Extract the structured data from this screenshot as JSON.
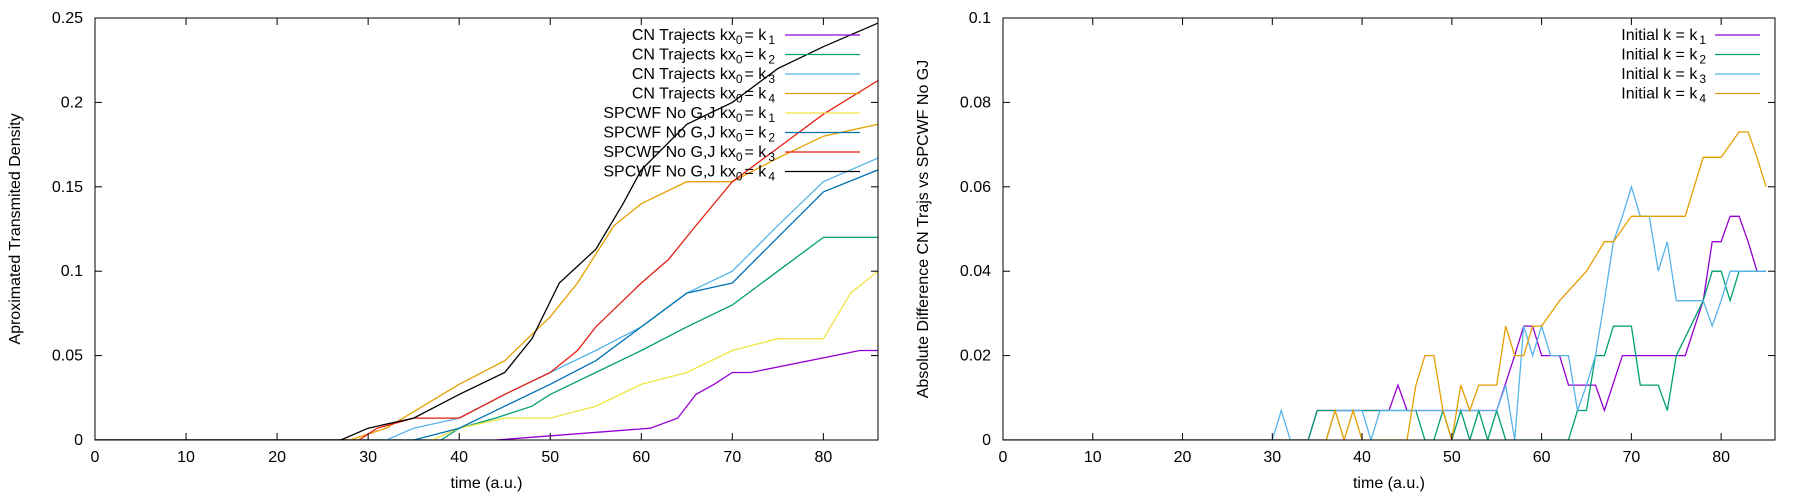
{
  "chart_data": [
    {
      "type": "line",
      "xlabel": "time (a.u.)",
      "ylabel": "Aproximated Transmited Density",
      "xlim": [
        0,
        86
      ],
      "ylim": [
        0,
        0.25
      ],
      "xticks": [
        0,
        10,
        20,
        30,
        40,
        50,
        60,
        70,
        80
      ],
      "xtick_labels": [
        "0",
        "10",
        "20",
        "30",
        "40",
        "50",
        "60",
        "70",
        "80"
      ],
      "yticks": [
        0,
        0.05,
        0.1,
        0.15,
        0.2,
        0.25
      ],
      "ytick_labels": [
        "0",
        "0.05",
        "0.1",
        "0.15",
        "0.2",
        "0.25"
      ],
      "grid": false,
      "legend_position": "top-right",
      "series": [
        {
          "label_prefix": "CN Trajects kx",
          "label_sub0": "0",
          "label_mid": "= k",
          "label_sub1": "1",
          "color": "#9400d3",
          "x": [
            0,
            44,
            61,
            64,
            66,
            68,
            70,
            72,
            84,
            86
          ],
          "y": [
            0,
            0,
            0.007,
            0.013,
            0.027,
            0.033,
            0.04,
            0.04,
            0.053,
            0.053
          ]
        },
        {
          "label_prefix": "CN Trajects kx",
          "label_sub0": "0",
          "label_mid": "= k",
          "label_sub1": "2",
          "color": "#009e73",
          "x": [
            0,
            38,
            40,
            44,
            48,
            50,
            55,
            60,
            65,
            70,
            75,
            80,
            86
          ],
          "y": [
            0,
            0,
            0.007,
            0.013,
            0.02,
            0.027,
            0.04,
            0.053,
            0.067,
            0.08,
            0.1,
            0.12,
            0.12
          ]
        },
        {
          "label_prefix": "CN Trajects kx",
          "label_sub0": "0",
          "label_mid": "= k",
          "label_sub1": "3",
          "color": "#56b4e9",
          "x": [
            0,
            32,
            35,
            40,
            45,
            50,
            55,
            60,
            65,
            70,
            75,
            80,
            86
          ],
          "y": [
            0,
            0,
            0.007,
            0.013,
            0.027,
            0.04,
            0.053,
            0.067,
            0.087,
            0.1,
            0.127,
            0.153,
            0.167
          ]
        },
        {
          "label_prefix": "CN Trajects kx",
          "label_sub0": "0",
          "label_mid": "= k",
          "label_sub1": "4",
          "color": "#e69f00",
          "x": [
            0,
            28,
            32,
            36,
            40,
            45,
            50,
            53,
            57,
            60,
            65,
            70,
            75,
            80,
            86
          ],
          "y": [
            0,
            0,
            0.007,
            0.02,
            0.033,
            0.047,
            0.073,
            0.093,
            0.127,
            0.14,
            0.153,
            0.153,
            0.167,
            0.18,
            0.187
          ]
        },
        {
          "label_prefix": "SPCWF No G,J kx",
          "label_sub0": "0",
          "label_mid": "= k",
          "label_sub1": "1",
          "color": "#f0e442",
          "x": [
            0,
            37,
            40,
            45,
            50,
            55,
            60,
            65,
            70,
            75,
            80,
            83,
            86
          ],
          "y": [
            0,
            0,
            0.007,
            0.013,
            0.013,
            0.02,
            0.033,
            0.04,
            0.053,
            0.06,
            0.06,
            0.087,
            0.1
          ]
        },
        {
          "label_prefix": "SPCWF No G,J kx",
          "label_sub0": "0",
          "label_mid": "= k",
          "label_sub1": "2",
          "color": "#0072b2",
          "x": [
            0,
            35,
            40,
            45,
            50,
            55,
            60,
            65,
            70,
            75,
            80,
            86
          ],
          "y": [
            0,
            0,
            0.007,
            0.02,
            0.033,
            0.047,
            0.067,
            0.087,
            0.093,
            0.12,
            0.147,
            0.16
          ]
        },
        {
          "label_prefix": "SPCWF No G,J kx",
          "label_sub0": "0",
          "label_mid": "= k",
          "label_sub1": "3",
          "color": "#e51e10",
          "x": [
            0,
            29,
            31,
            35,
            40,
            45,
            50,
            53,
            55,
            60,
            63,
            66,
            70,
            75,
            80,
            86
          ],
          "y": [
            0,
            0,
            0.007,
            0.013,
            0.013,
            0.027,
            0.04,
            0.053,
            0.067,
            0.093,
            0.107,
            0.127,
            0.153,
            0.173,
            0.193,
            0.213
          ]
        },
        {
          "label_prefix": "SPCWF No G,J kx",
          "label_sub0": "0",
          "label_mid": "= k",
          "label_sub1": "4",
          "color": "#000000",
          "x": [
            0,
            27,
            30,
            35,
            40,
            45,
            48,
            51,
            55,
            58,
            60,
            65,
            70,
            75,
            80,
            86
          ],
          "y": [
            0,
            0,
            0.007,
            0.013,
            0.027,
            0.04,
            0.06,
            0.093,
            0.113,
            0.14,
            0.16,
            0.187,
            0.2,
            0.22,
            0.233,
            0.247
          ]
        }
      ]
    },
    {
      "type": "line",
      "xlabel": "time (a.u.)",
      "ylabel": "Absolute Difference CN Trajs vs SPCWF No GJ",
      "xlim": [
        0,
        86
      ],
      "ylim": [
        0,
        0.1
      ],
      "xticks": [
        0,
        10,
        20,
        30,
        40,
        50,
        60,
        70,
        80
      ],
      "xtick_labels": [
        "0",
        "10",
        "20",
        "30",
        "40",
        "50",
        "60",
        "70",
        "80"
      ],
      "yticks": [
        0,
        0.02,
        0.04,
        0.06,
        0.08,
        0.1
      ],
      "ytick_labels": [
        "0",
        "0.02",
        "0.04",
        "0.06",
        "0.08",
        "0.1"
      ],
      "grid": false,
      "legend_position": "top-right",
      "series": [
        {
          "label_prefix": "Initial k = k",
          "label_sub1": "1",
          "color": "#9400d3",
          "x": [
            0,
            34,
            35,
            43,
            44,
            45,
            46,
            55,
            57,
            58,
            59,
            60,
            61,
            62,
            63,
            64,
            66,
            67,
            69,
            70,
            76,
            78,
            79,
            80,
            81,
            82,
            83,
            84,
            85
          ],
          "y": [
            0,
            0,
            0.007,
            0.007,
            0.013,
            0.007,
            0.007,
            0.007,
            0.02,
            0.027,
            0.027,
            0.02,
            0.02,
            0.02,
            0.013,
            0.013,
            0.013,
            0.007,
            0.02,
            0.02,
            0.02,
            0.033,
            0.047,
            0.047,
            0.053,
            0.053,
            0.047,
            0.04,
            0.04
          ]
        },
        {
          "label_prefix": "Initial k = k",
          "label_sub1": "2",
          "color": "#009e73",
          "x": [
            0,
            34,
            35,
            46,
            47,
            48,
            49,
            50,
            51,
            52,
            53,
            54,
            55,
            56,
            57,
            63,
            64,
            65,
            66,
            67,
            68,
            69,
            70,
            71,
            73,
            74,
            75,
            78,
            79,
            80,
            81,
            82,
            85
          ],
          "y": [
            0,
            0,
            0.007,
            0.007,
            0.0,
            0.0,
            0.007,
            0.0,
            0.007,
            0.0,
            0.007,
            0.0,
            0.007,
            0.0,
            0.0,
            0.0,
            0.007,
            0.007,
            0.02,
            0.02,
            0.027,
            0.027,
            0.027,
            0.013,
            0.013,
            0.007,
            0.02,
            0.033,
            0.04,
            0.04,
            0.033,
            0.04,
            0.04
          ]
        },
        {
          "label_prefix": "Initial k = k",
          "label_sub1": "3",
          "color": "#56b4e9",
          "x": [
            0,
            30,
            31,
            32,
            36,
            37,
            40,
            41,
            42,
            55,
            56,
            57,
            58,
            59,
            60,
            61,
            62,
            63,
            64,
            65,
            66,
            67,
            68,
            69,
            70,
            71,
            72,
            73,
            74,
            75,
            76,
            78,
            79,
            80,
            81,
            82,
            85
          ],
          "y": [
            0,
            0,
            0.007,
            0.0,
            0.0,
            0.007,
            0.007,
            0.0,
            0.007,
            0.007,
            0.013,
            0.0,
            0.027,
            0.02,
            0.027,
            0.02,
            0.02,
            0.02,
            0.007,
            0.013,
            0.02,
            0.033,
            0.047,
            0.053,
            0.06,
            0.053,
            0.053,
            0.04,
            0.047,
            0.033,
            0.033,
            0.033,
            0.027,
            0.033,
            0.04,
            0.04,
            0.04
          ]
        },
        {
          "label_prefix": "Initial k = k",
          "label_sub1": "4",
          "color": "#e69f00",
          "x": [
            0,
            36,
            37,
            38,
            39,
            40,
            41,
            45,
            46,
            47,
            48,
            49,
            50,
            51,
            52,
            53,
            54,
            55,
            56,
            57,
            58,
            59,
            60,
            62,
            65,
            67,
            68,
            70,
            72,
            76,
            78,
            79,
            80,
            82,
            83,
            84,
            85
          ],
          "y": [
            0,
            0,
            0.007,
            0.0,
            0.007,
            0.0,
            0.0,
            0.0,
            0.013,
            0.02,
            0.02,
            0.007,
            0.0,
            0.013,
            0.007,
            0.013,
            0.013,
            0.013,
            0.027,
            0.02,
            0.02,
            0.027,
            0.027,
            0.033,
            0.04,
            0.047,
            0.047,
            0.053,
            0.053,
            0.053,
            0.067,
            0.067,
            0.067,
            0.073,
            0.073,
            0.067,
            0.06
          ]
        }
      ]
    }
  ]
}
